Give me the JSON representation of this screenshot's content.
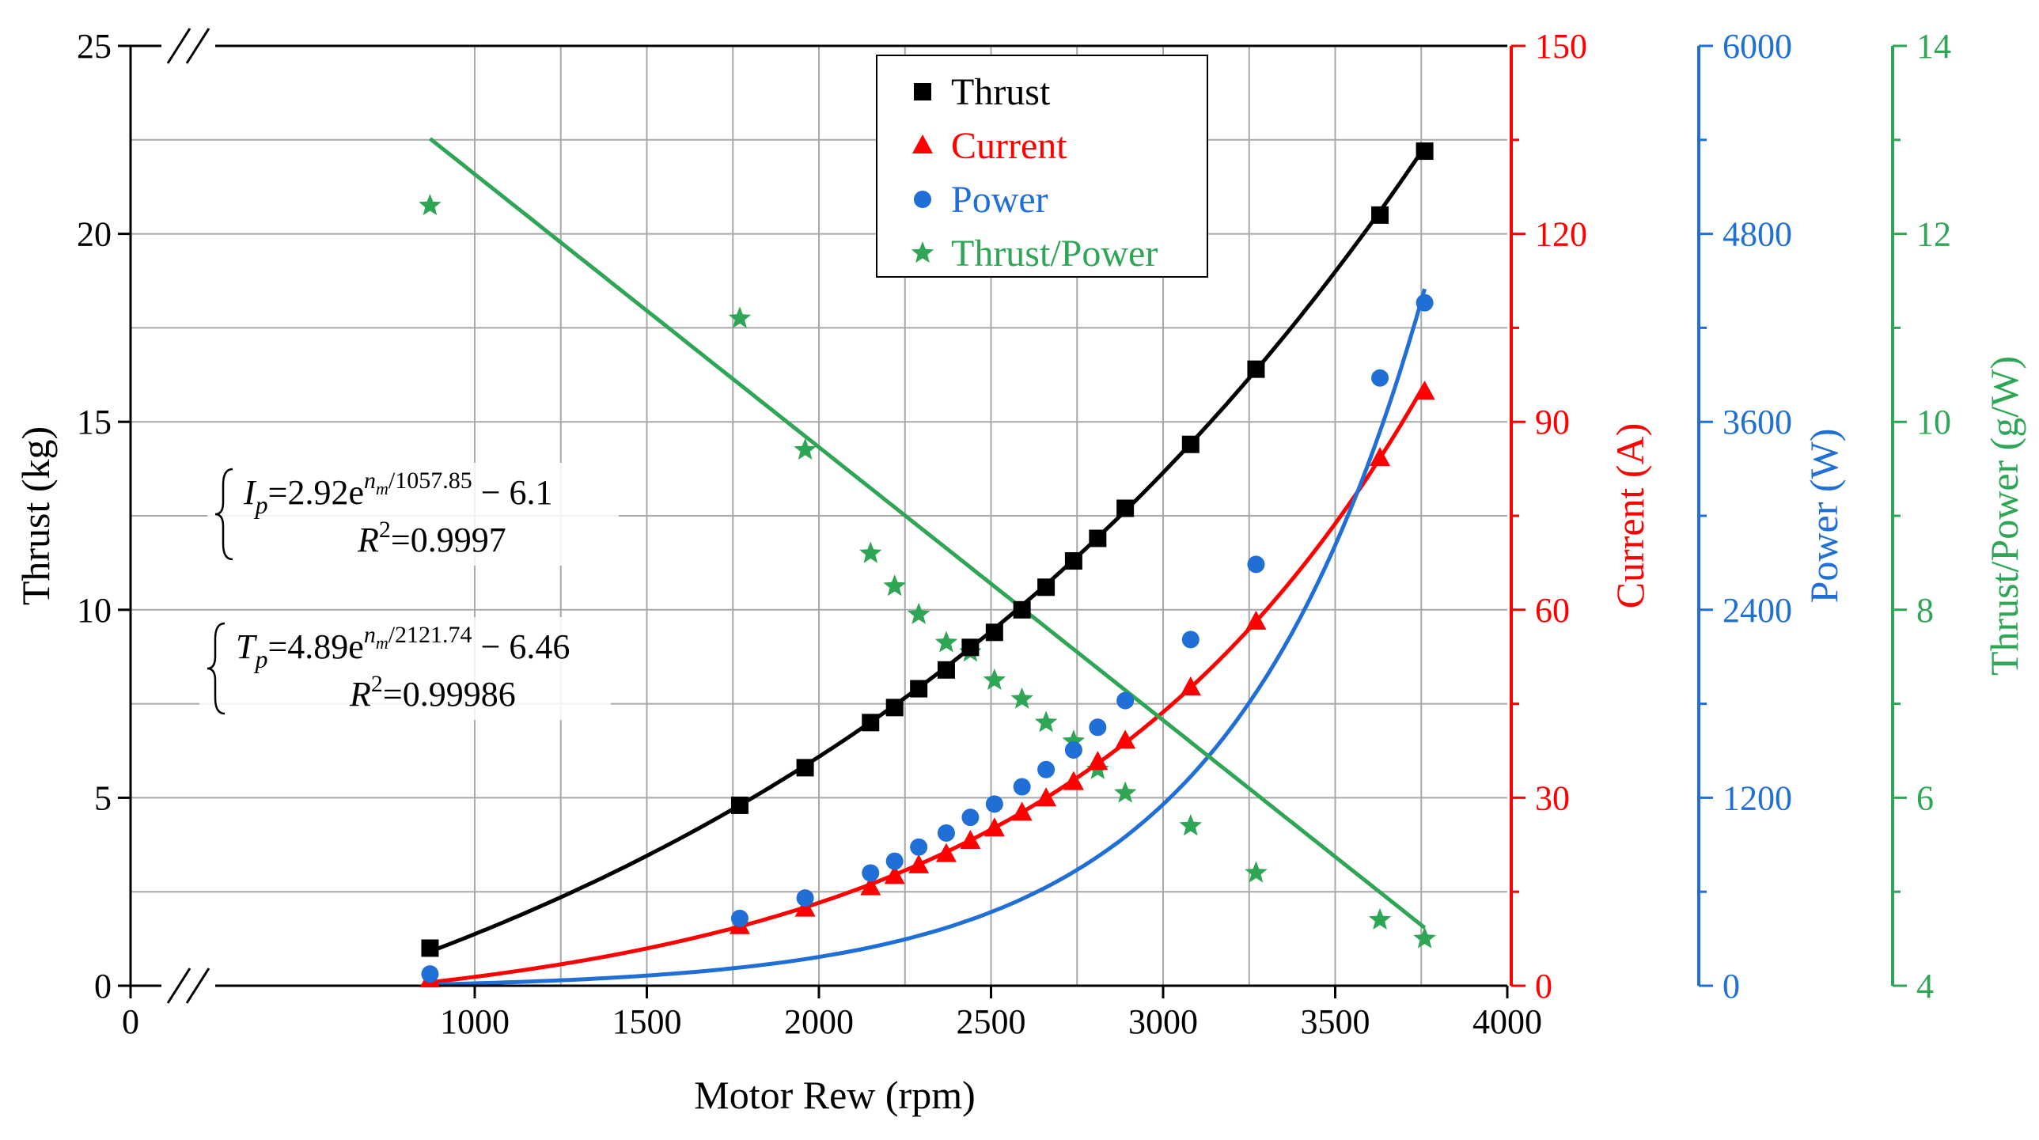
{
  "chart_data": {
    "type": "line",
    "title": "",
    "xlabel": "Motor Rew (rpm)",
    "xlim": [
      0,
      4000
    ],
    "x_ticks": [
      0,
      1000,
      1500,
      2000,
      2500,
      3000,
      3500,
      4000
    ],
    "x_axis_break": true,
    "grid": true,
    "legend_position": "top-center",
    "y_axes": [
      {
        "id": "thrust",
        "label": "Thrust (kg)",
        "range": [
          0,
          25
        ],
        "ticks": [
          0,
          5,
          10,
          15,
          20,
          25
        ],
        "side": "left",
        "color": "#000000",
        "axis_break": true
      },
      {
        "id": "current",
        "label": "Current (A)",
        "range": [
          0,
          150
        ],
        "ticks": [
          0,
          30,
          60,
          90,
          120,
          150
        ],
        "side": "right",
        "color": "#ff0000"
      },
      {
        "id": "power",
        "label": "Power (W)",
        "range": [
          0,
          6000
        ],
        "ticks": [
          0,
          1200,
          2400,
          3600,
          4800,
          6000
        ],
        "side": "right",
        "color": "#1f6fd6"
      },
      {
        "id": "ratio",
        "label": "Thrust/Power (g/W)",
        "range": [
          4,
          14
        ],
        "ticks": [
          4,
          6,
          8,
          10,
          12,
          14
        ],
        "side": "right",
        "color": "#2ea655"
      }
    ],
    "series": [
      {
        "name": "Thrust",
        "axis": "thrust",
        "marker": "square",
        "color": "#000000",
        "x": [
          870,
          1770,
          1960,
          2150,
          2220,
          2290,
          2370,
          2440,
          2510,
          2590,
          2660,
          2740,
          2810,
          2890,
          3080,
          3270,
          3630,
          3760
        ],
        "y": [
          1.0,
          4.8,
          5.8,
          7.0,
          7.4,
          7.9,
          8.4,
          9.0,
          9.4,
          10.0,
          10.6,
          11.3,
          11.9,
          12.7,
          14.4,
          16.4,
          20.5,
          22.2
        ]
      },
      {
        "name": "Current",
        "axis": "current",
        "marker": "triangle",
        "color": "#ff0000",
        "x": [
          870,
          1770,
          1960,
          2150,
          2220,
          2290,
          2370,
          2440,
          2510,
          2590,
          2660,
          2740,
          2810,
          2890,
          3080,
          3270,
          3630,
          3760
        ],
        "y": [
          1.0,
          9.5,
          12.3,
          15.7,
          17.5,
          19.2,
          21.0,
          23.1,
          25.1,
          27.6,
          29.9,
          32.5,
          35.7,
          39.1,
          47.6,
          58.1,
          84.2,
          94.8
        ]
      },
      {
        "name": "Power",
        "axis": "power",
        "marker": "circle",
        "color": "#1f6fd6",
        "x": [
          870,
          1770,
          1960,
          2150,
          2220,
          2290,
          2370,
          2440,
          2510,
          2590,
          2660,
          2740,
          2810,
          2890,
          3080,
          3270,
          3630,
          3760
        ],
        "y": [
          75,
          430,
          560,
          720,
          795,
          885,
          975,
          1075,
          1160,
          1270,
          1380,
          1505,
          1650,
          1820,
          2210,
          2690,
          3880,
          4360
        ]
      },
      {
        "name": "Thrust/Power",
        "axis": "ratio",
        "marker": "star",
        "color": "#2ea655",
        "x": [
          870,
          1770,
          1960,
          2150,
          2220,
          2290,
          2370,
          2440,
          2510,
          2590,
          2660,
          2740,
          2810,
          2890,
          3080,
          3270,
          3630,
          3760
        ],
        "y": [
          12.3,
          11.1,
          9.7,
          8.6,
          8.25,
          7.95,
          7.65,
          7.55,
          7.25,
          7.05,
          6.8,
          6.6,
          6.3,
          6.05,
          5.7,
          5.2,
          4.7,
          4.5
        ]
      }
    ],
    "fit_lines": [
      {
        "name": "Thrust fit",
        "axis": "thrust",
        "color": "#000000",
        "a": 4.89,
        "b": 2121.74,
        "c": -6.46,
        "x_range": [
          870,
          3760
        ]
      },
      {
        "name": "Current fit",
        "axis": "current",
        "color": "#ff0000",
        "a": 2.92,
        "b": 1057.85,
        "c": -6.1,
        "x_range": [
          870,
          3760
        ]
      },
      {
        "name": "Power fit",
        "axis": "power",
        "color": "#1f6fd6",
        "a": 6.1,
        "b": 570,
        "c": -20,
        "x_range": [
          870,
          3760
        ]
      },
      {
        "name": "Thrust/Power fit",
        "axis": "ratio",
        "color": "#2ea655",
        "slope": -0.002905,
        "intercept": 15.54,
        "x_range": [
          870,
          3760
        ]
      }
    ],
    "annotations": {
      "current_eq": {
        "lhs": "I",
        "sub": "p",
        "prefix": "=2.92e",
        "exp_base": "n",
        "exp_sub": "m",
        "exp_tail": "/1057.85",
        "suffix": " − 6.1",
        "r2_label": "R",
        "r2_sup": "2",
        "r2_value": "=0.9997"
      },
      "thrust_eq": {
        "lhs": "T",
        "sub": "p",
        "prefix": "=4.89e",
        "exp_base": "n",
        "exp_sub": "m",
        "exp_tail": "/2121.74",
        "suffix": " − 6.46",
        "r2_label": "R",
        "r2_sup": "2",
        "r2_value": "=0.99986"
      }
    }
  }
}
